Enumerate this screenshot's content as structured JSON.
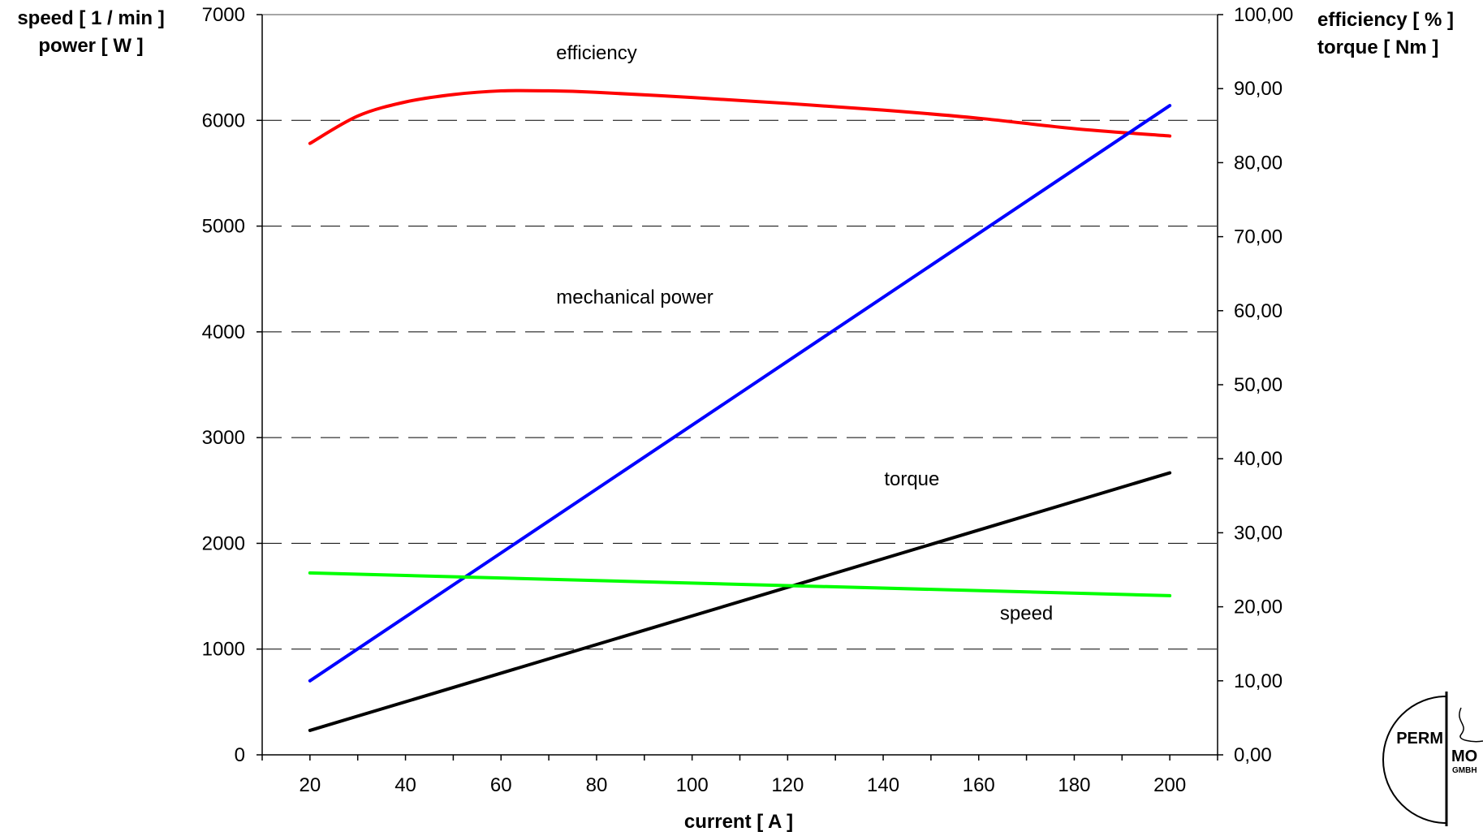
{
  "chart_data": {
    "type": "line",
    "title": "",
    "xlabel": "current [ A ]",
    "ylabel_left": [
      "speed [ 1 / min ]",
      "power [ W ]"
    ],
    "ylabel_right": [
      "efficiency [ % ]",
      "torque [ Nm ]"
    ],
    "xlim": [
      10,
      210
    ],
    "x_ticks": [
      20,
      40,
      60,
      80,
      100,
      120,
      140,
      160,
      180,
      200
    ],
    "x_tick_labels": [
      "20",
      "40",
      "60",
      "80",
      "100",
      "120",
      "140",
      "160",
      "180",
      "200"
    ],
    "ylim_left": [
      0,
      7000
    ],
    "y_left_ticks": [
      0,
      1000,
      2000,
      3000,
      4000,
      5000,
      6000,
      7000
    ],
    "y_left_tick_labels": [
      "0",
      "1000",
      "2000",
      "3000",
      "4000",
      "5000",
      "6000",
      "7000"
    ],
    "ylim_right": [
      0,
      100
    ],
    "y_right_ticks": [
      0,
      10,
      20,
      30,
      40,
      50,
      60,
      70,
      80,
      90,
      100
    ],
    "y_right_tick_labels": [
      "0,00",
      "10,00",
      "20,00",
      "30,00",
      "40,00",
      "50,00",
      "60,00",
      "70,00",
      "80,00",
      "90,00",
      "100,00"
    ],
    "grid": "horizontal-dashed",
    "series": [
      {
        "name": "efficiency",
        "axis": "right",
        "color": "#ff0000",
        "x": [
          20,
          30,
          40,
          50,
          60,
          70,
          80,
          100,
          120,
          140,
          160,
          180,
          200
        ],
        "y": [
          82.6,
          86.3,
          88.2,
          89.2,
          89.7,
          89.7,
          89.5,
          88.8,
          88.0,
          87.1,
          86.0,
          84.6,
          83.6
        ]
      },
      {
        "name": "mechanical power",
        "axis": "left",
        "color": "#0000ff",
        "x": [
          20,
          200
        ],
        "y": [
          700,
          6140
        ]
      },
      {
        "name": "torque",
        "axis": "right",
        "color": "#000000",
        "x": [
          20,
          200
        ],
        "y": [
          3.3,
          38.1
        ]
      },
      {
        "name": "speed",
        "axis": "left",
        "color": "#00ff00",
        "x": [
          20,
          200
        ],
        "y": [
          1720,
          1505
        ]
      }
    ],
    "annotations": [
      {
        "text": "efficiency",
        "x": 80,
        "y_left": 6640
      },
      {
        "text": "mechanical power",
        "x": 88,
        "y_left": 4330
      },
      {
        "text": "torque",
        "x": 146,
        "y_left": 2610
      },
      {
        "text": "speed",
        "x": 170,
        "y_left": 1340
      }
    ]
  },
  "logo": {
    "text_left": "PERM",
    "text_right": "MO",
    "text_small": "GMBH"
  }
}
